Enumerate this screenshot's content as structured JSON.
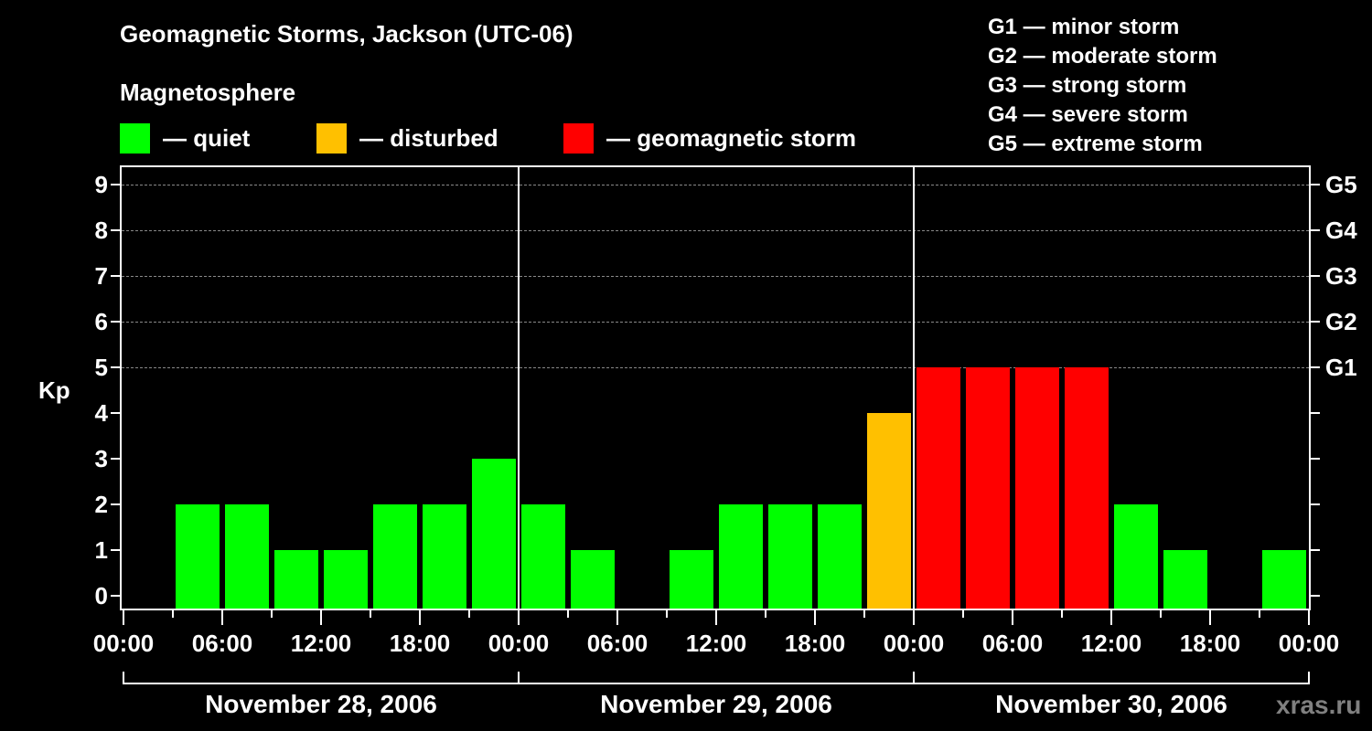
{
  "header": {
    "title": "Geomagnetic Storms, Jackson (UTC-06)",
    "subtitle": "Magnetosphere"
  },
  "legend": [
    {
      "label": "— quiet",
      "color": "#00ff00"
    },
    {
      "label": "— disturbed",
      "color": "#ffc000"
    },
    {
      "label": "— geomagnetic storm",
      "color": "#ff0000"
    }
  ],
  "g_scale_legend": [
    "G1 — minor storm",
    "G2 — moderate storm",
    "G3 — strong storm",
    "G4 — severe storm",
    "G5 — extreme storm"
  ],
  "axis": {
    "ylabel": "Kp",
    "yticks": [
      "0",
      "1",
      "2",
      "3",
      "4",
      "5",
      "6",
      "7",
      "8",
      "9"
    ],
    "right_labels": [
      {
        "kp": 5,
        "label": "G1"
      },
      {
        "kp": 6,
        "label": "G2"
      },
      {
        "kp": 7,
        "label": "G3"
      },
      {
        "kp": 8,
        "label": "G4"
      },
      {
        "kp": 9,
        "label": "G5"
      }
    ],
    "xticks": [
      "00:00",
      "06:00",
      "12:00",
      "18:00",
      "00:00",
      "06:00",
      "12:00",
      "18:00",
      "00:00",
      "06:00",
      "12:00",
      "18:00",
      "00:00"
    ],
    "dates": [
      "November 28, 2006",
      "November 29, 2006",
      "November 30, 2006"
    ]
  },
  "watermark": "xras.ru",
  "colors": {
    "quiet": "#00ff00",
    "disturbed": "#ffc000",
    "storm": "#ff0000",
    "grid": "#888888",
    "background": "#000000"
  },
  "chart_data": {
    "type": "bar",
    "title": "Geomagnetic Storms, Jackson (UTC-06)",
    "subtitle": "Magnetosphere",
    "xlabel": "",
    "ylabel": "Kp",
    "ylim": [
      0,
      9
    ],
    "grid": "dashed horizontal at Kp 5-9",
    "legend_position": "top",
    "categories": [
      "Nov 28 00:00",
      "Nov 28 03:00",
      "Nov 28 06:00",
      "Nov 28 09:00",
      "Nov 28 12:00",
      "Nov 28 15:00",
      "Nov 28 18:00",
      "Nov 28 21:00",
      "Nov 29 00:00",
      "Nov 29 03:00",
      "Nov 29 06:00",
      "Nov 29 09:00",
      "Nov 29 12:00",
      "Nov 29 15:00",
      "Nov 29 18:00",
      "Nov 29 21:00",
      "Nov 30 00:00",
      "Nov 30 03:00",
      "Nov 30 06:00",
      "Nov 30 09:00",
      "Nov 30 12:00",
      "Nov 30 15:00",
      "Nov 30 18:00",
      "Nov 30 21:00"
    ],
    "values": [
      null,
      2,
      2,
      1,
      1,
      2,
      2,
      3,
      2,
      1,
      null,
      1,
      2,
      2,
      2,
      4,
      5,
      5,
      5,
      5,
      2,
      1,
      null,
      1
    ],
    "status": [
      null,
      "quiet",
      "quiet",
      "quiet",
      "quiet",
      "quiet",
      "quiet",
      "quiet",
      "quiet",
      "quiet",
      null,
      "quiet",
      "quiet",
      "quiet",
      "quiet",
      "disturbed",
      "storm",
      "storm",
      "storm",
      "storm",
      "quiet",
      "quiet",
      null,
      "quiet"
    ],
    "right_axis": {
      "5": "G1",
      "6": "G2",
      "7": "G3",
      "8": "G4",
      "9": "G5"
    }
  }
}
